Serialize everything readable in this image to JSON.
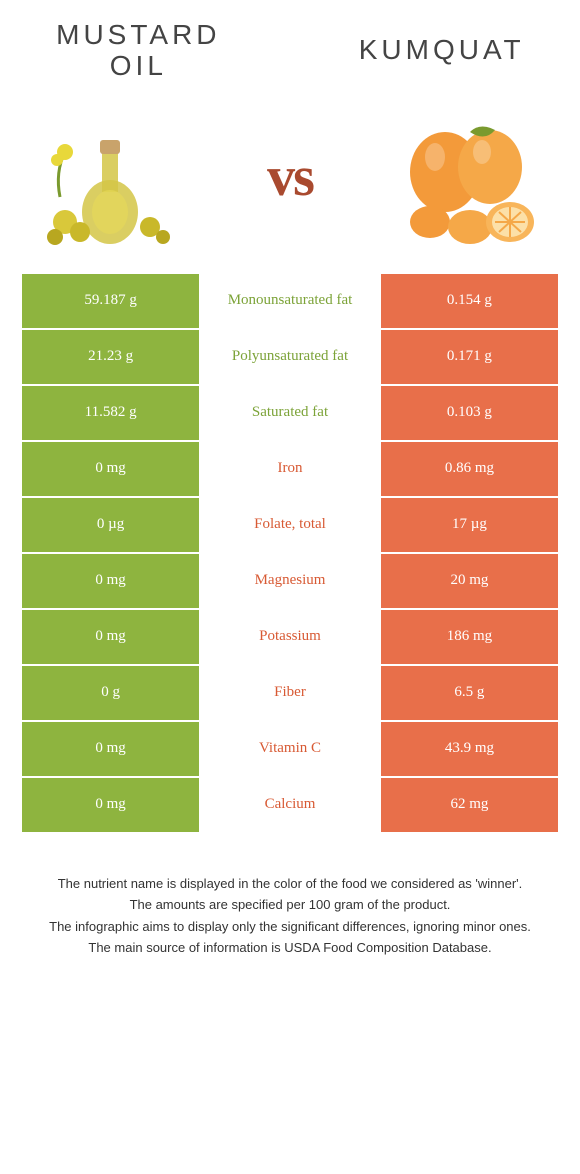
{
  "food_left": {
    "title": "Mustard\nOil"
  },
  "food_right": {
    "title": "Kumquat"
  },
  "vs": "vs",
  "colors": {
    "left_bg": "#8eb43f",
    "right_bg": "#e86f4a",
    "mid_green": "#7ca338",
    "mid_orange": "#d85a34",
    "vs_color": "#a94a2f"
  },
  "rows": [
    {
      "left": "59.187 g",
      "nutrient": "Monounsaturated fat",
      "right": "0.154 g",
      "winner": "left"
    },
    {
      "left": "21.23 g",
      "nutrient": "Polyunsaturated fat",
      "right": "0.171 g",
      "winner": "left"
    },
    {
      "left": "11.582 g",
      "nutrient": "Saturated fat",
      "right": "0.103 g",
      "winner": "left"
    },
    {
      "left": "0 mg",
      "nutrient": "Iron",
      "right": "0.86 mg",
      "winner": "right"
    },
    {
      "left": "0 µg",
      "nutrient": "Folate, total",
      "right": "17 µg",
      "winner": "right"
    },
    {
      "left": "0 mg",
      "nutrient": "Magnesium",
      "right": "20 mg",
      "winner": "right"
    },
    {
      "left": "0 mg",
      "nutrient": "Potassium",
      "right": "186 mg",
      "winner": "right"
    },
    {
      "left": "0 g",
      "nutrient": "Fiber",
      "right": "6.5 g",
      "winner": "right"
    },
    {
      "left": "0 mg",
      "nutrient": "Vitamin C",
      "right": "43.9 mg",
      "winner": "right"
    },
    {
      "left": "0 mg",
      "nutrient": "Calcium",
      "right": "62 mg",
      "winner": "right"
    }
  ],
  "footnotes": [
    "The nutrient name is displayed in the color of the food we considered as 'winner'.",
    "The amounts are specified per 100 gram of the product.",
    "The infographic aims to display only the significant differences, ignoring minor ones.",
    "The main source of information is USDA Food Composition Database."
  ]
}
